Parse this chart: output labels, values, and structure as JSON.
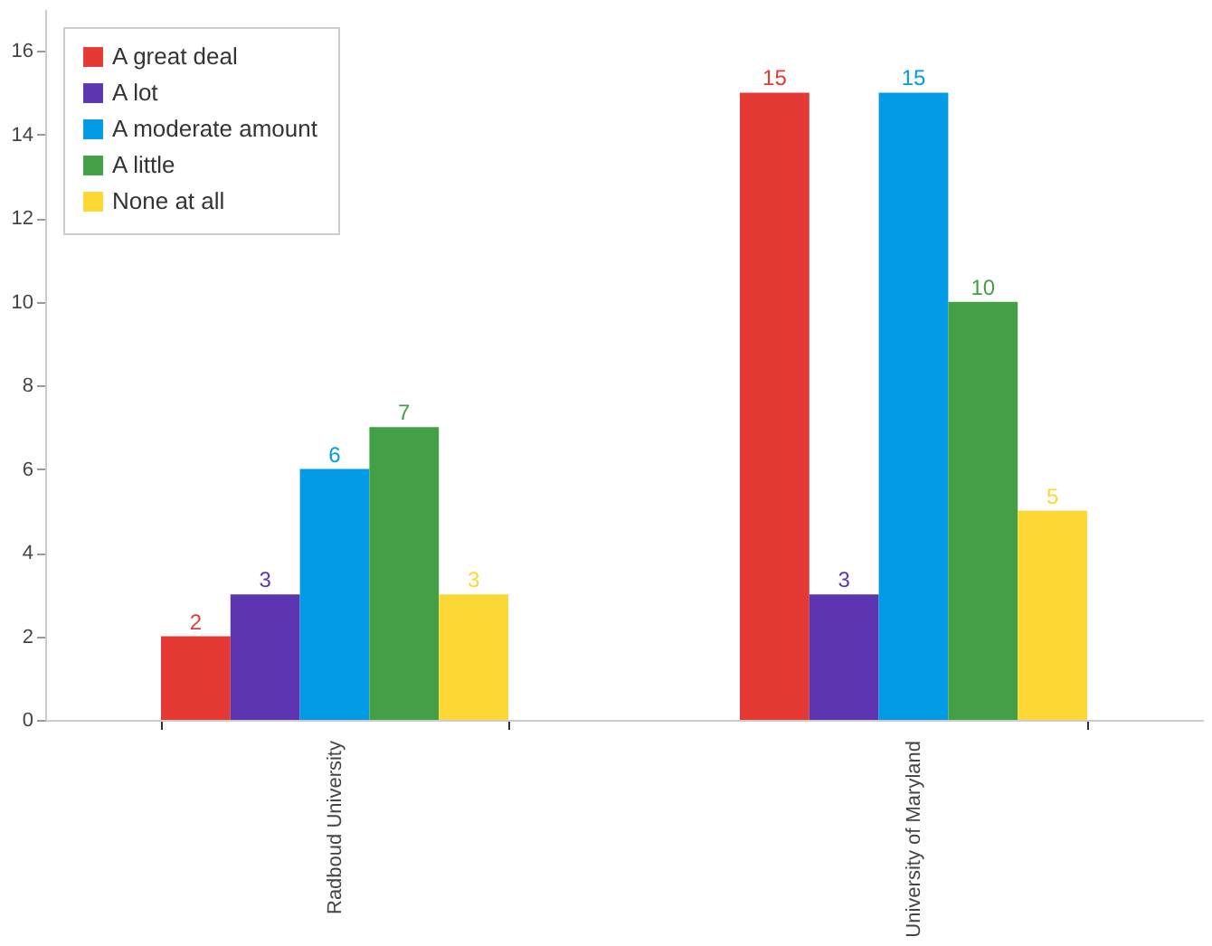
{
  "chart_data": {
    "type": "bar",
    "categories": [
      "Radboud University",
      "University of Maryland"
    ],
    "series": [
      {
        "name": "A great deal",
        "color": "#e53935",
        "values": [
          2,
          15
        ]
      },
      {
        "name": "A lot",
        "color": "#5e35b1",
        "values": [
          3,
          3
        ]
      },
      {
        "name": "A moderate amount",
        "color": "#039be5",
        "values": [
          6,
          15
        ]
      },
      {
        "name": "A little",
        "color": "#43a047",
        "values": [
          7,
          10
        ]
      },
      {
        "name": "None at all",
        "color": "#fdd835",
        "values": [
          3,
          5
        ]
      }
    ],
    "ylim": [
      0,
      17
    ],
    "yticks": [
      0,
      2,
      4,
      6,
      8,
      10,
      12,
      14,
      16
    ],
    "grid": false,
    "legend": "top left",
    "data_labels": true
  }
}
